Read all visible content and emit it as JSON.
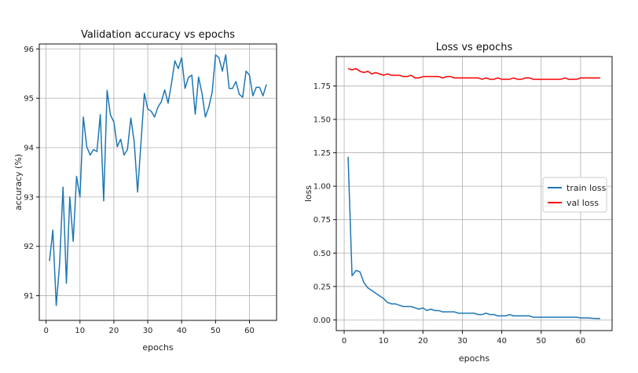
{
  "chart_data": [
    {
      "type": "line",
      "title": "Validation accuracy vs epochs",
      "xlabel": "epochs",
      "ylabel": "accuracy (%)",
      "xlim": [
        -2,
        68
      ],
      "ylim": [
        90.5,
        96.1
      ],
      "xticks": [
        0,
        10,
        20,
        30,
        40,
        50,
        60
      ],
      "yticks": [
        91,
        92,
        93,
        94,
        95,
        96
      ],
      "grid": true,
      "series": [
        {
          "color": "#1f77b4",
          "x": [
            1,
            2,
            3,
            4,
            5,
            6,
            7,
            8,
            9,
            10,
            11,
            12,
            13,
            14,
            15,
            16,
            17,
            18,
            19,
            20,
            21,
            22,
            23,
            24,
            25,
            26,
            27,
            28,
            29,
            30,
            31,
            32,
            33,
            34,
            35,
            36,
            37,
            38,
            39,
            40,
            41,
            42,
            43,
            44,
            45,
            46,
            47,
            48,
            49,
            50,
            51,
            52,
            53,
            54,
            55,
            56,
            57,
            58,
            59,
            60,
            61,
            62,
            63,
            64,
            65
          ],
          "y": [
            91.7,
            92.33,
            90.8,
            91.65,
            93.2,
            91.25,
            93.0,
            92.1,
            93.42,
            93.0,
            94.62,
            94.02,
            93.85,
            93.96,
            93.92,
            94.67,
            92.92,
            95.16,
            94.66,
            94.52,
            94.02,
            94.17,
            93.85,
            93.96,
            94.6,
            94.12,
            93.1,
            94.1,
            95.1,
            94.78,
            94.74,
            94.62,
            94.82,
            94.93,
            95.17,
            94.9,
            95.3,
            95.76,
            95.6,
            95.82,
            95.2,
            95.42,
            95.47,
            94.68,
            95.43,
            95.1,
            94.62,
            94.82,
            95.12,
            95.88,
            95.82,
            95.55,
            95.88,
            95.2,
            95.2,
            95.34,
            95.08,
            95.02,
            95.55,
            95.47,
            95.05,
            95.22,
            95.22,
            95.05,
            95.28
          ]
        }
      ]
    },
    {
      "type": "line",
      "title": "Loss vs epochs",
      "xlabel": "epochs",
      "ylabel": "loss",
      "xlim": [
        -2,
        68
      ],
      "ylim": [
        -0.08,
        1.97
      ],
      "xticks": [
        0,
        10,
        20,
        30,
        40,
        50,
        60
      ],
      "yticks": [
        0.0,
        0.25,
        0.5,
        0.75,
        1.0,
        1.25,
        1.5,
        1.75
      ],
      "ytick_labels": [
        "0.00",
        "0.25",
        "0.50",
        "0.75",
        "1.00",
        "1.25",
        "1.50",
        "1.75"
      ],
      "grid": true,
      "legend_position": "center-right",
      "series": [
        {
          "name": "train loss",
          "color": "#1f77b4",
          "x": [
            1,
            2,
            3,
            4,
            5,
            6,
            7,
            8,
            9,
            10,
            11,
            12,
            13,
            14,
            15,
            16,
            17,
            18,
            19,
            20,
            21,
            22,
            23,
            24,
            25,
            26,
            27,
            28,
            29,
            30,
            31,
            32,
            33,
            34,
            35,
            36,
            37,
            38,
            39,
            40,
            41,
            42,
            43,
            44,
            45,
            46,
            47,
            48,
            49,
            50,
            51,
            52,
            53,
            54,
            55,
            56,
            57,
            58,
            59,
            60,
            61,
            62,
            63,
            64,
            65
          ],
          "y": [
            1.22,
            0.33,
            0.37,
            0.36,
            0.28,
            0.24,
            0.22,
            0.2,
            0.18,
            0.16,
            0.13,
            0.12,
            0.12,
            0.11,
            0.1,
            0.1,
            0.1,
            0.09,
            0.08,
            0.09,
            0.07,
            0.08,
            0.07,
            0.07,
            0.06,
            0.06,
            0.06,
            0.06,
            0.05,
            0.05,
            0.05,
            0.05,
            0.05,
            0.04,
            0.04,
            0.05,
            0.04,
            0.04,
            0.03,
            0.03,
            0.03,
            0.04,
            0.03,
            0.03,
            0.03,
            0.03,
            0.03,
            0.02,
            0.02,
            0.02,
            0.02,
            0.02,
            0.02,
            0.02,
            0.02,
            0.02,
            0.02,
            0.02,
            0.02,
            0.015,
            0.015,
            0.015,
            0.012,
            0.01,
            0.01
          ]
        },
        {
          "name": "val loss",
          "color": "#ff0000",
          "x": [
            1,
            2,
            3,
            4,
            5,
            6,
            7,
            8,
            9,
            10,
            11,
            12,
            13,
            14,
            15,
            16,
            17,
            18,
            19,
            20,
            21,
            22,
            23,
            24,
            25,
            26,
            27,
            28,
            29,
            30,
            31,
            32,
            33,
            34,
            35,
            36,
            37,
            38,
            39,
            40,
            41,
            42,
            43,
            44,
            45,
            46,
            47,
            48,
            49,
            50,
            51,
            52,
            53,
            54,
            55,
            56,
            57,
            58,
            59,
            60,
            61,
            62,
            63,
            64,
            65
          ],
          "y": [
            1.88,
            1.87,
            1.88,
            1.86,
            1.85,
            1.86,
            1.84,
            1.85,
            1.84,
            1.83,
            1.84,
            1.83,
            1.83,
            1.83,
            1.82,
            1.82,
            1.83,
            1.81,
            1.81,
            1.82,
            1.82,
            1.82,
            1.82,
            1.82,
            1.81,
            1.82,
            1.82,
            1.81,
            1.81,
            1.81,
            1.81,
            1.81,
            1.81,
            1.81,
            1.8,
            1.81,
            1.8,
            1.8,
            1.81,
            1.8,
            1.8,
            1.8,
            1.81,
            1.8,
            1.8,
            1.81,
            1.81,
            1.8,
            1.8,
            1.8,
            1.8,
            1.8,
            1.8,
            1.8,
            1.8,
            1.81,
            1.8,
            1.8,
            1.8,
            1.81,
            1.81,
            1.81,
            1.81,
            1.81,
            1.81
          ]
        }
      ]
    }
  ]
}
